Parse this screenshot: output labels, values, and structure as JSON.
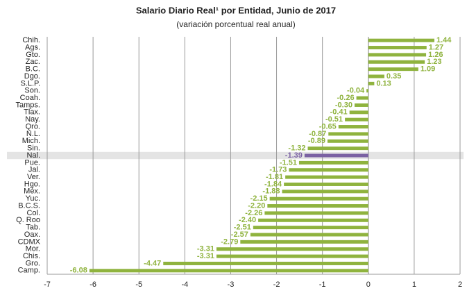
{
  "chart_data": {
    "type": "hbar",
    "title": "Salario Diario Real¹ por Entidad, Junio de 2017",
    "subtitle": "(variación porcentual real anual)",
    "categories": [
      "Chih.",
      "Ags.",
      "Gto.",
      "Zac.",
      "B.C.",
      "Dgo.",
      "S.L.P.",
      "Son.",
      "Coah.",
      "Tamps.",
      "Tlax.",
      "Nay.",
      "Qro.",
      "N.L.",
      "Mich.",
      "Sin.",
      "Nal.",
      "Pue.",
      "Jal.",
      "Ver.",
      "Hgo.",
      "Méx.",
      "Yuc.",
      "B.C.S.",
      "Col.",
      "Q. Roo",
      "Tab.",
      "Oax.",
      "CDMX",
      "Mor.",
      "Chis.",
      "Gro.",
      "Camp."
    ],
    "values": [
      1.44,
      1.27,
      1.26,
      1.23,
      1.09,
      0.35,
      0.13,
      -0.04,
      -0.26,
      -0.3,
      -0.41,
      -0.51,
      -0.65,
      -0.87,
      -0.89,
      -1.32,
      -1.39,
      -1.51,
      -1.73,
      -1.81,
      -1.84,
      -1.88,
      -2.15,
      -2.2,
      -2.26,
      -2.4,
      -2.51,
      -2.57,
      -2.79,
      -3.31,
      -3.31,
      -4.47,
      -6.08
    ],
    "value_labels": [
      "1.44",
      "1.27",
      "1.26",
      "1.23",
      "1.09",
      "0.35",
      "0.13",
      "-0.04",
      "-0.26",
      "-0.30",
      "-0.41",
      "-0.51",
      "-0.65",
      "-0.87",
      "-0.89",
      "-1.32",
      "-1.39",
      "-1.51",
      "-1.73",
      "-1.81",
      "-1.84",
      "-1.88",
      "-2.15",
      "-2.20",
      "-2.26",
      "-2.40",
      "-2.51",
      "-2.57",
      "-2.79",
      "-3.31",
      "-3.31",
      "-4.47",
      "-6.08"
    ],
    "color": "#8fb33e",
    "colors": [
      "#8fb33e",
      "#8fb33e",
      "#8fb33e",
      "#8fb33e",
      "#8fb33e",
      "#8fb33e",
      "#8fb33e",
      "#8fb33e",
      "#8fb33e",
      "#8fb33e",
      "#8fb33e",
      "#8fb33e",
      "#8fb33e",
      "#8fb33e",
      "#8fb33e",
      "#8fb33e",
      "#7b62a3",
      "#8fb33e",
      "#8fb33e",
      "#8fb33e",
      "#8fb33e",
      "#8fb33e",
      "#8fb33e",
      "#8fb33e",
      "#8fb33e",
      "#8fb33e",
      "#8fb33e",
      "#8fb33e",
      "#8fb33e",
      "#8fb33e",
      "#8fb33e",
      "#8fb33e",
      "#8fb33e"
    ],
    "xlim": [
      -7,
      2
    ],
    "xticks": [
      -7,
      -6,
      -5,
      -4,
      -3,
      -2,
      -1,
      0,
      1,
      2
    ],
    "grid": true
  }
}
